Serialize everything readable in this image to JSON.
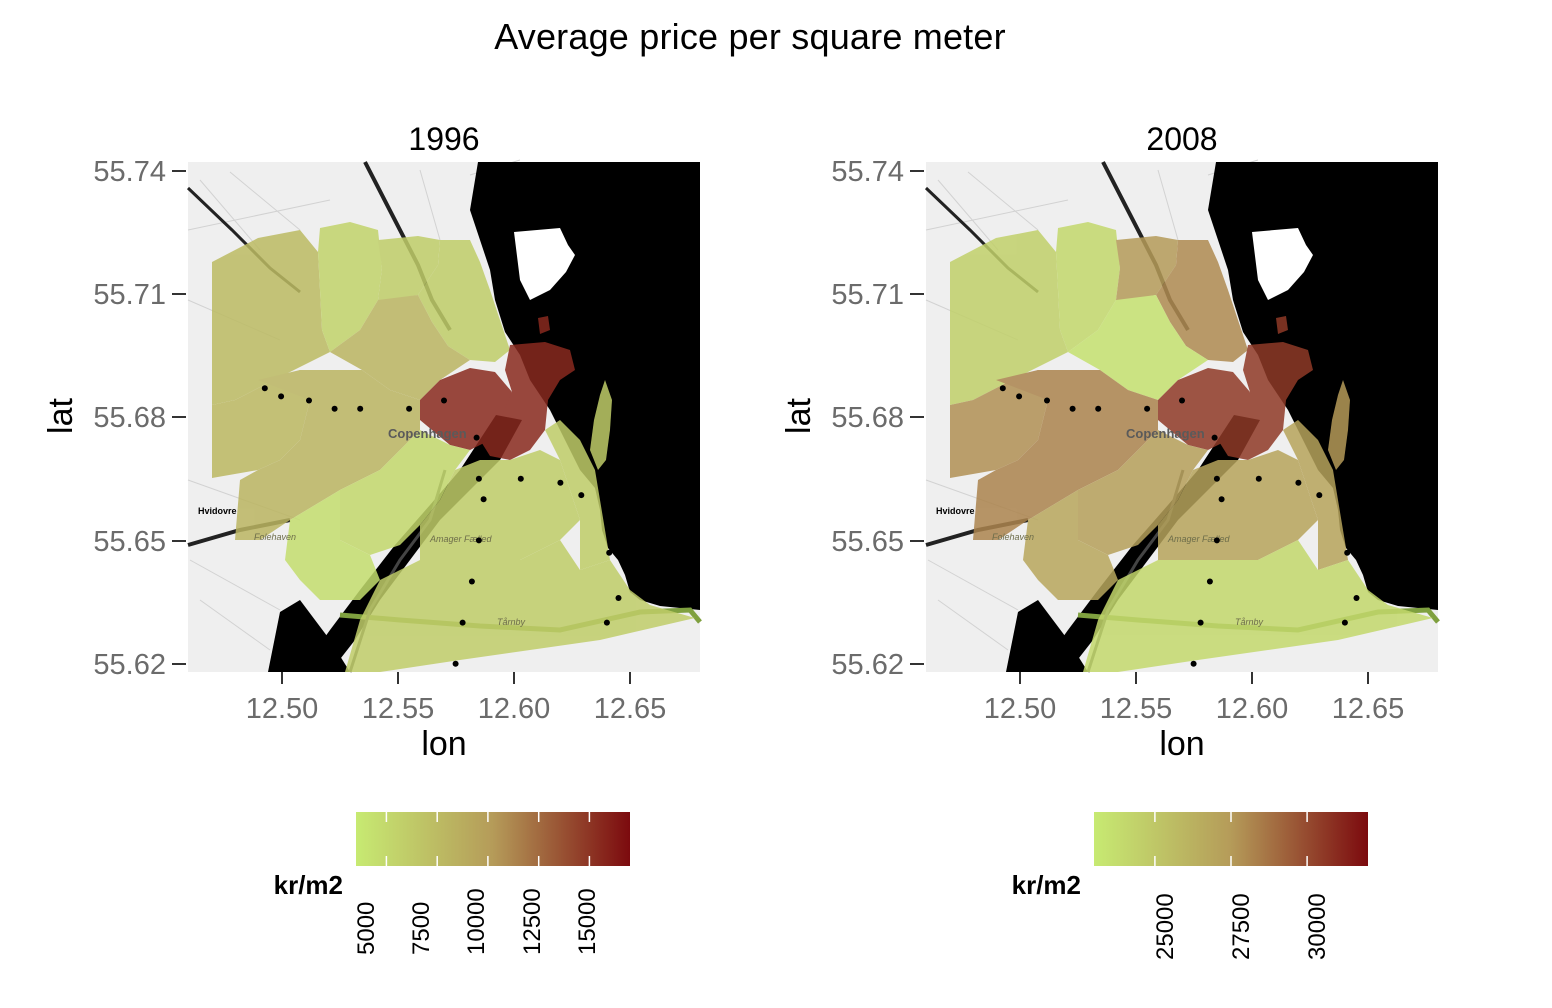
{
  "title": "Average price per square meter",
  "axes": {
    "xlabel": "lon",
    "ylabel": "lat"
  },
  "x_ticks": [
    "12.50",
    "12.55",
    "12.60",
    "12.65"
  ],
  "y_ticks": [
    "55.74",
    "55.71",
    "55.68",
    "55.65",
    "55.62"
  ],
  "place_labels": {
    "city": "Copenhagen",
    "west": "Hvidovre",
    "road": "Folehaven",
    "park": "Amager Fælled",
    "south": "Tårnby"
  },
  "colors": {
    "low": "#c7ea72",
    "mid": "#b59b59",
    "high": "#7c0a0e",
    "water": "#000000",
    "background": "#efefef"
  },
  "chart_data": [
    {
      "type": "choropleth",
      "panel": "1996",
      "xlim": [
        12.46,
        12.68
      ],
      "ylim": [
        55.618,
        55.742
      ],
      "legend": {
        "title": "kr/m2",
        "min": 3500,
        "max": 17000,
        "ticks": [
          "5000",
          "7500",
          "10000",
          "12500",
          "15000"
        ]
      },
      "districts": [
        {
          "id": "NW",
          "value": 7500
        },
        {
          "id": "N1",
          "value": 5500
        },
        {
          "id": "N2",
          "value": 6000
        },
        {
          "id": "NE",
          "value": 6000
        },
        {
          "id": "W",
          "value": 7800
        },
        {
          "id": "C",
          "value": 8000
        },
        {
          "id": "SW",
          "value": 8000
        },
        {
          "id": "CORE",
          "value": 15500
        },
        {
          "id": "CH",
          "value": 15500
        },
        {
          "id": "SC",
          "value": 5000
        },
        {
          "id": "SW2",
          "value": 4500
        },
        {
          "id": "AM",
          "value": 6000
        },
        {
          "id": "AE",
          "value": 6000
        },
        {
          "id": "AS",
          "value": 6000
        },
        {
          "id": "IS",
          "value": 15500
        },
        {
          "id": "HB",
          "value": 6000
        }
      ],
      "points": [
        [
          12.493,
          55.687
        ],
        [
          12.5,
          55.685
        ],
        [
          12.512,
          55.684
        ],
        [
          12.523,
          55.682
        ],
        [
          12.534,
          55.682
        ],
        [
          12.555,
          55.682
        ],
        [
          12.585,
          55.665
        ],
        [
          12.587,
          55.66
        ],
        [
          12.603,
          55.665
        ],
        [
          12.62,
          55.664
        ],
        [
          12.629,
          55.661
        ],
        [
          12.585,
          55.65
        ],
        [
          12.582,
          55.64
        ],
        [
          12.578,
          55.63
        ],
        [
          12.641,
          55.647
        ],
        [
          12.645,
          55.636
        ],
        [
          12.64,
          55.63
        ],
        [
          12.575,
          55.62
        ],
        [
          12.584,
          55.675
        ],
        [
          12.57,
          55.684
        ]
      ]
    },
    {
      "type": "choropleth",
      "panel": "2008",
      "xlim": [
        12.46,
        12.68
      ],
      "ylim": [
        55.618,
        55.742
      ],
      "legend": {
        "title": "kr/m2",
        "min": 23000,
        "max": 32000,
        "ticks": [
          "25000",
          "27500",
          "30000"
        ]
      },
      "districts": [
        {
          "id": "NW",
          "value": 24500
        },
        {
          "id": "N1",
          "value": 24000
        },
        {
          "id": "N2",
          "value": 27500
        },
        {
          "id": "NE",
          "value": 28000
        },
        {
          "id": "W",
          "value": 27800
        },
        {
          "id": "C",
          "value": 23500
        },
        {
          "id": "SW",
          "value": 28200
        },
        {
          "id": "CORE",
          "value": 30500
        },
        {
          "id": "CH",
          "value": 30500
        },
        {
          "id": "SC",
          "value": 27200
        },
        {
          "id": "SW2",
          "value": 26800
        },
        {
          "id": "AM",
          "value": 27000
        },
        {
          "id": "AE",
          "value": 27000
        },
        {
          "id": "AS",
          "value": 24000
        },
        {
          "id": "IS",
          "value": 30500
        },
        {
          "id": "HB",
          "value": 27500
        }
      ],
      "points": [
        [
          12.493,
          55.687
        ],
        [
          12.5,
          55.685
        ],
        [
          12.512,
          55.684
        ],
        [
          12.523,
          55.682
        ],
        [
          12.534,
          55.682
        ],
        [
          12.555,
          55.682
        ],
        [
          12.585,
          55.665
        ],
        [
          12.587,
          55.66
        ],
        [
          12.603,
          55.665
        ],
        [
          12.62,
          55.664
        ],
        [
          12.629,
          55.661
        ],
        [
          12.585,
          55.65
        ],
        [
          12.582,
          55.64
        ],
        [
          12.578,
          55.63
        ],
        [
          12.641,
          55.647
        ],
        [
          12.645,
          55.636
        ],
        [
          12.64,
          55.63
        ],
        [
          12.575,
          55.62
        ],
        [
          12.584,
          55.675
        ],
        [
          12.57,
          55.684
        ]
      ]
    }
  ]
}
